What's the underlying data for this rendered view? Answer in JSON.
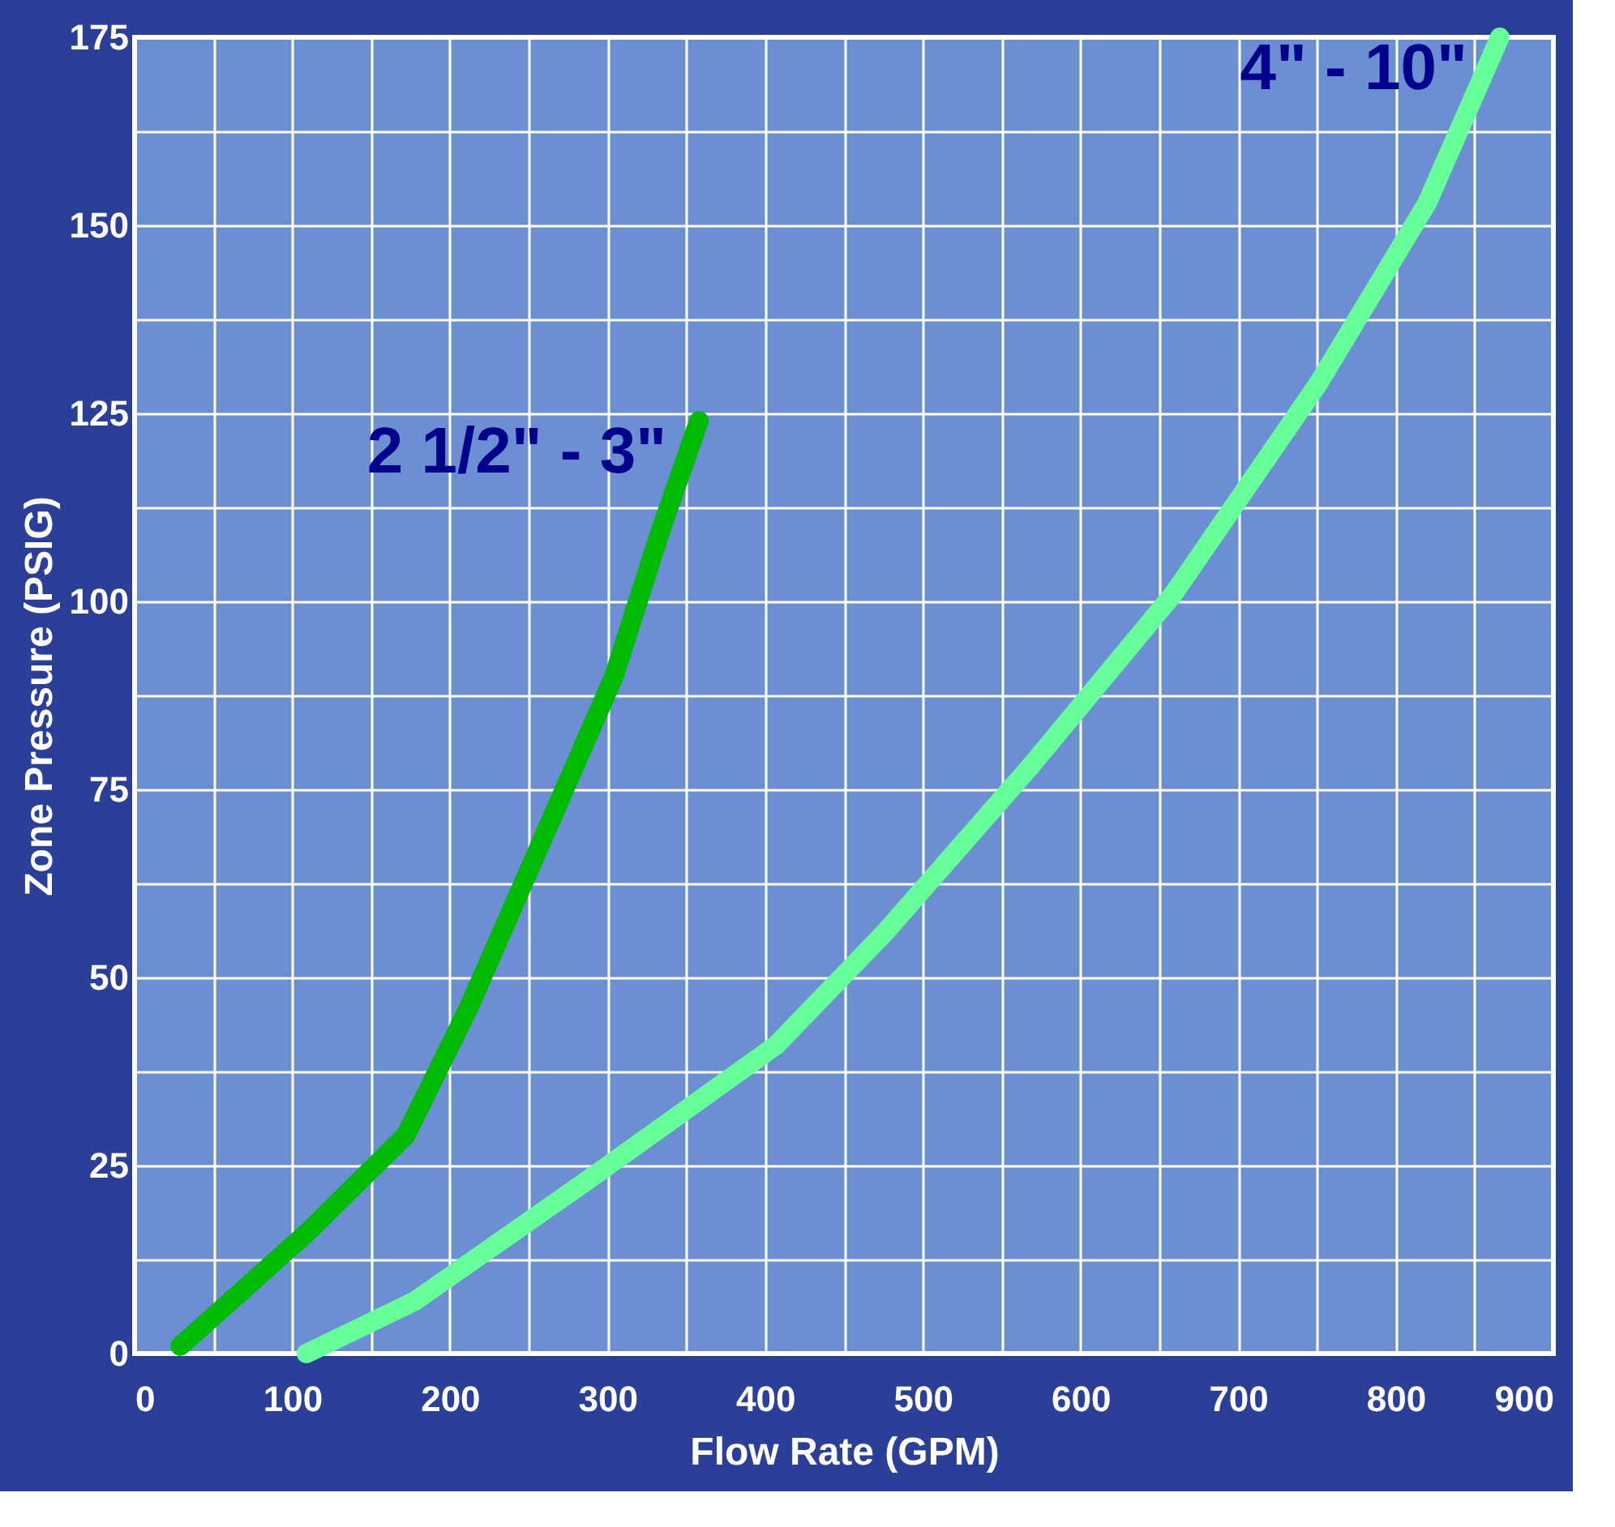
{
  "chart_data": {
    "type": "line",
    "xlabel": "Flow Rate (GPM)",
    "ylabel": "Zone Pressure (PSIG)",
    "xlim": [
      0,
      900
    ],
    "ylim": [
      0,
      175
    ],
    "xticks": [
      0,
      {
        "value": 50,
        "label": null
      },
      100,
      {
        "value": 150,
        "label": null
      },
      200,
      {
        "value": 250,
        "label": null
      },
      300,
      {
        "value": 350,
        "label": null
      },
      400,
      {
        "value": 450,
        "label": null
      },
      500,
      {
        "value": 550,
        "label": null
      },
      600,
      {
        "value": 650,
        "label": null
      },
      700,
      {
        "value": 750,
        "label": null
      },
      800,
      {
        "value": 850,
        "label": null
      },
      900
    ],
    "yticks": [
      0,
      {
        "value": 12.5,
        "label": null
      },
      25,
      {
        "value": 37.5,
        "label": null
      },
      50,
      {
        "value": 62.5,
        "label": null
      },
      75,
      {
        "value": 87.5,
        "label": null
      },
      100,
      {
        "value": 112.5,
        "label": null
      },
      125,
      {
        "value": 137.5,
        "label": null
      },
      150,
      {
        "value": 162.5,
        "label": null
      },
      175
    ],
    "grid": true,
    "legend": false,
    "line_style": "solid",
    "series": [
      {
        "name": "2 1/2\" - 3\"",
        "color": "#00bb00",
        "x": [
          29,
          109,
          172,
          212,
          258,
          304,
          333,
          358
        ],
        "values": [
          1,
          16,
          29,
          46,
          68,
          90,
          109,
          124
        ]
      },
      {
        "name": "4\" - 10\"",
        "color": "#66ff99",
        "x": [
          109,
          178,
          287,
          407,
          476,
          568,
          659,
          751,
          820,
          866
        ],
        "values": [
          0,
          7,
          23,
          41,
          56,
          78,
          101,
          129,
          153,
          175
        ]
      }
    ]
  }
}
